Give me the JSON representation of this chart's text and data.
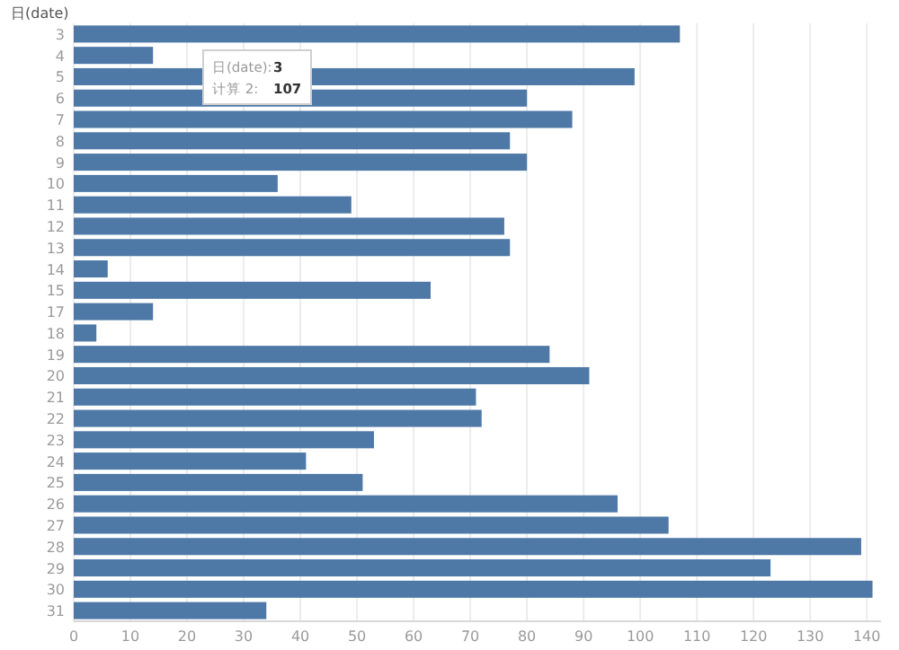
{
  "chart_data": {
    "type": "bar",
    "orientation": "horizontal",
    "ylabel": "日(date)",
    "categories": [
      "3",
      "4",
      "5",
      "6",
      "7",
      "8",
      "9",
      "10",
      "11",
      "12",
      "13",
      "14",
      "15",
      "17",
      "18",
      "19",
      "20",
      "21",
      "22",
      "23",
      "24",
      "25",
      "26",
      "27",
      "28",
      "29",
      "30",
      "31"
    ],
    "values": [
      107,
      14,
      99,
      80,
      88,
      77,
      80,
      36,
      49,
      76,
      77,
      6,
      63,
      14,
      4,
      84,
      91,
      71,
      72,
      53,
      41,
      51,
      96,
      105,
      139,
      123,
      141,
      34
    ],
    "color": "#4e79a7",
    "xlim": [
      0,
      142.5
    ],
    "xticks": [
      0,
      10,
      20,
      30,
      40,
      50,
      60,
      70,
      80,
      90,
      100,
      110,
      120,
      130,
      140
    ],
    "grid": "x",
    "annotations": [
      "日(date):",
      "3",
      "计算 2:",
      "107"
    ]
  }
}
